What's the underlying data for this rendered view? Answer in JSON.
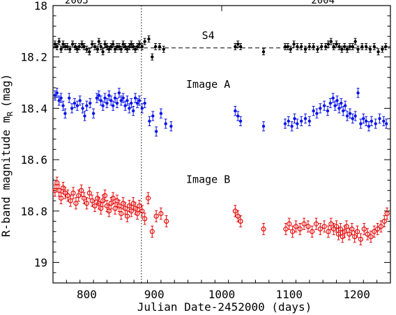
{
  "chart_data": {
    "type": "scatter",
    "title": "",
    "xlabel": "Julian Date-2452000 (days)",
    "ylabel": "R-band magnitude m",
    "ylabel_sub": "R",
    "ylabel_unit": "(mag)",
    "xlim": [
      750,
      1250
    ],
    "ylim": [
      18.0,
      19.08
    ],
    "y_inverted": true,
    "grid": false,
    "x_ticks": [
      800,
      900,
      1000,
      1100,
      1200
    ],
    "y_ticks": [
      18.0,
      18.2,
      18.4,
      18.6,
      18.8,
      19.0
    ],
    "y_tick_labels": [
      "18",
      "18.2",
      "18.4",
      "18.6",
      "18.8",
      "19"
    ],
    "top_axis": {
      "labels": [
        {
          "text": "2003",
          "x": 785
        },
        {
          "text": "2004",
          "x": 1150
        }
      ],
      "year_marker_x": 1000
    },
    "annotations": [
      {
        "text": "S4",
        "x": 980,
        "y": 18.13
      },
      {
        "text": "Image A",
        "x": 980,
        "y": 18.32
      },
      {
        "text": "Image B",
        "x": 980,
        "y": 18.69
      }
    ],
    "reference_lines": [
      {
        "orientation": "horizontal",
        "y": 18.165,
        "style": "dashed"
      },
      {
        "orientation": "vertical",
        "x": 881,
        "style": "dotted"
      }
    ],
    "series": [
      {
        "marker": "filled-circle",
        "color": "#000000",
        "err": 0.012,
        "x": [
          753,
          756,
          759,
          762,
          765,
          768,
          771,
          775,
          779,
          783,
          786,
          789,
          793,
          796,
          800,
          804,
          808,
          812,
          816,
          818,
          821,
          824,
          827,
          830,
          833,
          836,
          839,
          842,
          845,
          848,
          851,
          854,
          857,
          860,
          863,
          866,
          869,
          872,
          875,
          878,
          882,
          886,
          892,
          897,
          902,
          908,
          914,
          1020,
          1024,
          1028,
          1062,
          1094,
          1098,
          1102,
          1107,
          1112,
          1118,
          1124,
          1130,
          1136,
          1142,
          1148,
          1154,
          1158,
          1162,
          1166,
          1170,
          1174,
          1178,
          1182,
          1186,
          1190,
          1194,
          1198,
          1202,
          1208,
          1214,
          1220,
          1226,
          1232,
          1238,
          1243
        ],
        "y": [
          18.15,
          18.16,
          18.14,
          18.17,
          18.15,
          18.16,
          18.16,
          18.17,
          18.15,
          18.16,
          18.17,
          18.16,
          18.15,
          18.16,
          18.17,
          18.18,
          18.15,
          18.16,
          18.17,
          18.14,
          18.16,
          18.18,
          18.15,
          18.16,
          18.17,
          18.16,
          18.15,
          18.17,
          18.16,
          18.16,
          18.17,
          18.15,
          18.16,
          18.17,
          18.16,
          18.15,
          18.16,
          18.17,
          18.16,
          18.15,
          18.16,
          18.14,
          18.13,
          18.2,
          18.16,
          18.16,
          18.17,
          18.16,
          18.15,
          18.16,
          18.18,
          18.16,
          18.16,
          18.17,
          18.15,
          18.16,
          18.16,
          18.17,
          18.16,
          18.16,
          18.17,
          18.16,
          18.16,
          18.15,
          18.14,
          18.16,
          18.15,
          18.16,
          18.17,
          18.16,
          18.17,
          18.16,
          18.16,
          18.14,
          18.17,
          18.16,
          18.16,
          18.17,
          18.16,
          18.18,
          18.17,
          18.16
        ]
      },
      {
        "marker": "filled-circle",
        "color": "#0a14e6",
        "err": 0.018,
        "x": [
          753,
          756,
          759,
          762,
          765,
          768,
          774,
          778,
          782,
          786,
          790,
          794,
          797,
          800,
          805,
          810,
          815,
          818,
          821,
          824,
          827,
          830,
          833,
          836,
          839,
          842,
          845,
          848,
          851,
          854,
          857,
          860,
          863,
          866,
          869,
          872,
          875,
          878,
          882,
          886,
          893,
          898,
          903,
          910,
          917,
          925,
          1020,
          1024,
          1028,
          1062,
          1094,
          1099,
          1104,
          1108,
          1112,
          1118,
          1124,
          1130,
          1136,
          1141,
          1146,
          1152,
          1157,
          1161,
          1165,
          1168,
          1171,
          1174,
          1177,
          1180,
          1183,
          1186,
          1190,
          1194,
          1198,
          1202,
          1206,
          1210,
          1214,
          1218,
          1222,
          1228,
          1234,
          1240,
          1244
        ],
        "y": [
          18.35,
          18.34,
          18.37,
          18.36,
          18.39,
          18.42,
          18.36,
          18.4,
          18.38,
          18.39,
          18.37,
          18.4,
          18.43,
          18.39,
          18.38,
          18.42,
          18.36,
          18.35,
          18.37,
          18.39,
          18.36,
          18.38,
          18.35,
          18.37,
          18.39,
          18.36,
          18.38,
          18.34,
          18.37,
          18.36,
          18.39,
          18.37,
          18.4,
          18.38,
          18.41,
          18.36,
          18.38,
          18.37,
          18.4,
          18.38,
          18.45,
          18.43,
          18.49,
          18.42,
          18.46,
          18.47,
          18.41,
          18.43,
          18.45,
          18.47,
          18.46,
          18.45,
          18.47,
          18.44,
          18.46,
          18.45,
          18.44,
          18.45,
          18.41,
          18.42,
          18.4,
          18.39,
          18.41,
          18.38,
          18.36,
          18.39,
          18.37,
          18.4,
          18.38,
          18.41,
          18.39,
          18.43,
          18.42,
          18.44,
          18.43,
          18.34,
          18.46,
          18.44,
          18.45,
          18.47,
          18.45,
          18.46,
          18.44,
          18.45,
          18.46
        ]
      },
      {
        "marker": "open-circle",
        "color": "#e60a0a",
        "err": 0.022,
        "x": [
          753,
          756,
          759,
          762,
          765,
          768,
          772,
          776,
          780,
          784,
          788,
          792,
          796,
          800,
          804,
          808,
          812,
          816,
          818,
          821,
          824,
          827,
          830,
          833,
          836,
          839,
          842,
          845,
          848,
          851,
          854,
          857,
          860,
          863,
          866,
          869,
          872,
          875,
          878,
          882,
          886,
          891,
          897,
          903,
          910,
          918,
          1020,
          1024,
          1028,
          1062,
          1095,
          1100,
          1105,
          1110,
          1116,
          1122,
          1128,
          1134,
          1140,
          1146,
          1152,
          1158,
          1162,
          1166,
          1170,
          1173,
          1176,
          1179,
          1182,
          1185,
          1189,
          1193,
          1197,
          1201,
          1206,
          1211,
          1216,
          1221,
          1226,
          1231,
          1236,
          1241,
          1245
        ],
        "y": [
          18.72,
          18.69,
          18.72,
          18.75,
          18.71,
          18.73,
          18.74,
          18.76,
          18.73,
          18.77,
          18.74,
          18.72,
          18.75,
          18.77,
          18.73,
          18.76,
          18.78,
          18.75,
          18.77,
          18.79,
          18.76,
          18.74,
          18.78,
          18.8,
          18.77,
          18.75,
          18.79,
          18.76,
          18.78,
          18.81,
          18.77,
          18.79,
          18.82,
          18.78,
          18.8,
          18.77,
          18.79,
          18.81,
          18.78,
          18.8,
          18.83,
          18.75,
          18.88,
          18.82,
          18.81,
          18.84,
          18.8,
          18.82,
          18.84,
          18.87,
          18.87,
          18.85,
          18.88,
          18.86,
          18.87,
          18.85,
          18.86,
          18.88,
          18.85,
          18.87,
          18.86,
          18.88,
          18.85,
          18.87,
          18.86,
          18.89,
          18.87,
          18.9,
          18.88,
          18.86,
          18.89,
          18.87,
          18.9,
          18.88,
          18.91,
          18.87,
          18.89,
          18.9,
          18.88,
          18.87,
          18.86,
          18.84,
          18.81
        ]
      }
    ]
  }
}
